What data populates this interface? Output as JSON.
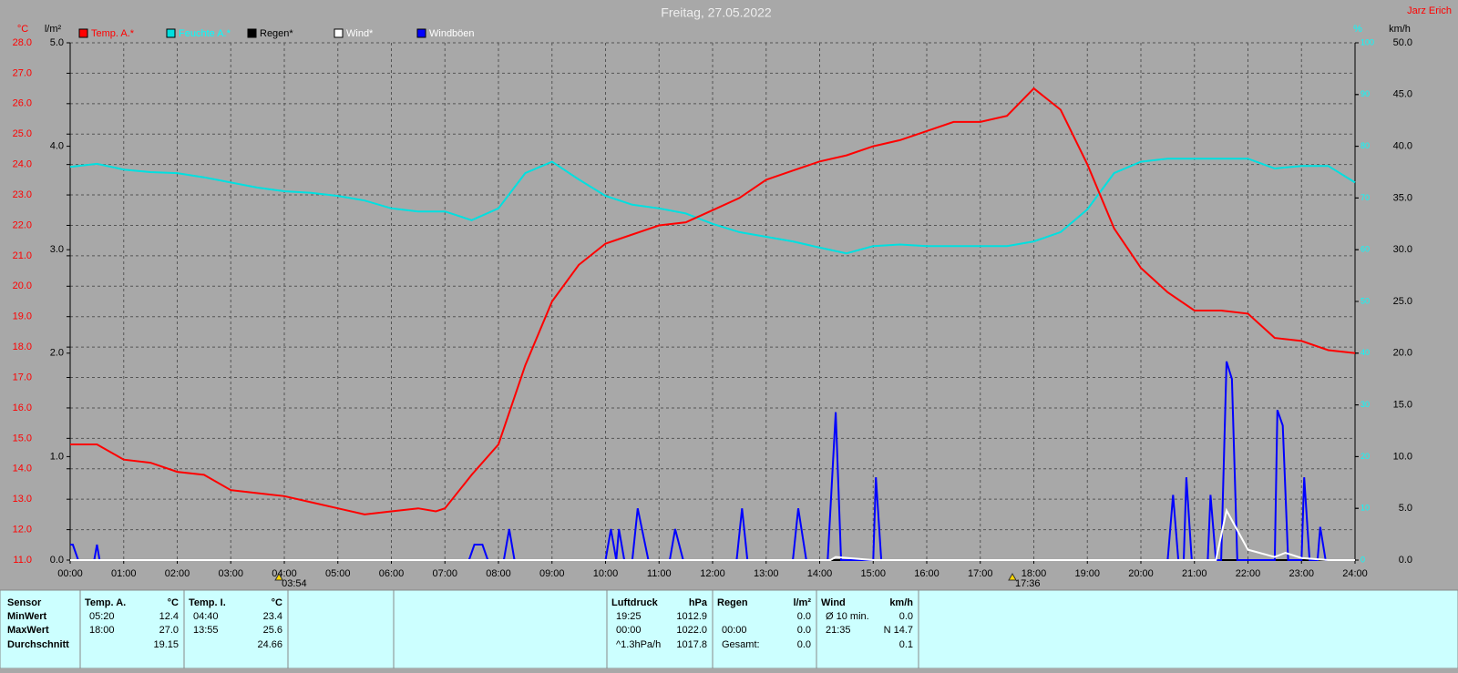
{
  "chart_data": {
    "type": "line",
    "title": "Freitag, 27.05.2022",
    "author": "Jarz Erich",
    "grid": true,
    "xlim": [
      0,
      24
    ],
    "xticks": [
      {
        "value": 0,
        "label": "00:00"
      },
      {
        "value": 1,
        "label": "01:00"
      },
      {
        "value": 2,
        "label": "02:00"
      },
      {
        "value": 3,
        "label": "03:00"
      },
      {
        "value": 4,
        "label": "04:00"
      },
      {
        "value": 5,
        "label": "05:00"
      },
      {
        "value": 6,
        "label": "06:00"
      },
      {
        "value": 7,
        "label": "07:00"
      },
      {
        "value": 8,
        "label": "08:00"
      },
      {
        "value": 9,
        "label": "09:00"
      },
      {
        "value": 10,
        "label": "10:00"
      },
      {
        "value": 11,
        "label": "11:00"
      },
      {
        "value": 12,
        "label": "12:00"
      },
      {
        "value": 13,
        "label": "13:00"
      },
      {
        "value": 14,
        "label": "14:00"
      },
      {
        "value": 15,
        "label": "15:00"
      },
      {
        "value": 16,
        "label": "16:00"
      },
      {
        "value": 17,
        "label": "17:00"
      },
      {
        "value": 18,
        "label": "18:00"
      },
      {
        "value": 19,
        "label": "19:00"
      },
      {
        "value": 20,
        "label": "20:00"
      },
      {
        "value": 21,
        "label": "21:00"
      },
      {
        "value": 22,
        "label": "22:00"
      },
      {
        "value": 23,
        "label": "23:00"
      },
      {
        "value": 24,
        "label": "24:00"
      }
    ],
    "axes": [
      {
        "label": "°C",
        "color": "#ff0000",
        "lim": [
          11,
          28
        ],
        "ticks": [
          {
            "value": 11,
            "label": "11.0"
          },
          {
            "value": 12,
            "label": "12.0"
          },
          {
            "value": 13,
            "label": "13.0"
          },
          {
            "value": 14,
            "label": "14.0"
          },
          {
            "value": 15,
            "label": "15.0"
          },
          {
            "value": 16,
            "label": "16.0"
          },
          {
            "value": 17,
            "label": "17.0"
          },
          {
            "value": 18,
            "label": "18.0"
          },
          {
            "value": 19,
            "label": "19.0"
          },
          {
            "value": 20,
            "label": "20.0"
          },
          {
            "value": 21,
            "label": "21.0"
          },
          {
            "value": 22,
            "label": "22.0"
          },
          {
            "value": 23,
            "label": "23.0"
          },
          {
            "value": 24,
            "label": "24.0"
          },
          {
            "value": 25,
            "label": "25.0"
          },
          {
            "value": 26,
            "label": "26.0"
          },
          {
            "value": 27,
            "label": "27.0"
          },
          {
            "value": 28,
            "label": "28.0"
          }
        ]
      },
      {
        "label": "l/m²",
        "color": "#000000",
        "lim": [
          0,
          5
        ],
        "ticks": [
          {
            "value": 0,
            "label": "0.0"
          },
          {
            "value": 1,
            "label": "1.0"
          },
          {
            "value": 2,
            "label": "2.0"
          },
          {
            "value": 3,
            "label": "3.0"
          },
          {
            "value": 4,
            "label": "4.0"
          },
          {
            "value": 5,
            "label": "5.0"
          }
        ]
      },
      {
        "label": "%",
        "color": "#00ffff",
        "lim": [
          0,
          100
        ],
        "ticks": [
          0,
          10,
          20,
          30,
          40,
          50,
          60,
          70,
          80,
          90,
          100
        ]
      },
      {
        "label": "km/h",
        "color": "#000000",
        "lim": [
          0,
          50
        ],
        "ticks": [
          {
            "value": 0,
            "label": "0.0"
          },
          {
            "value": 5,
            "label": "5.0"
          },
          {
            "value": 10,
            "label": "10.0"
          },
          {
            "value": 15,
            "label": "15.0"
          },
          {
            "value": 20,
            "label": "20.0"
          },
          {
            "value": 25,
            "label": "25.0"
          },
          {
            "value": 30,
            "label": "30.0"
          },
          {
            "value": 35,
            "label": "35.0"
          },
          {
            "value": 40,
            "label": "40.0"
          },
          {
            "value": 45,
            "label": "45.0"
          },
          {
            "value": 50,
            "label": "50.0"
          }
        ]
      }
    ],
    "series": [
      {
        "name": "Temp. A.*",
        "color": "#ff0000",
        "label_color": "#ff0000",
        "axis": 0,
        "x": [
          0,
          0.5,
          1,
          1.5,
          2,
          2.5,
          3,
          3.5,
          4,
          4.5,
          5,
          5.5,
          6,
          6.5,
          6.83,
          7,
          7.5,
          8,
          8.5,
          9,
          9.5,
          10,
          10.5,
          11,
          11.5,
          12,
          12.5,
          13,
          13.5,
          14,
          14.5,
          15,
          15.5,
          16,
          16.5,
          17,
          17.5,
          18,
          18.5,
          19,
          19.5,
          20,
          20.5,
          21,
          21.5,
          22,
          22.5,
          23,
          23.5,
          24
        ],
        "values": [
          14.8,
          14.8,
          14.3,
          14.2,
          13.9,
          13.8,
          13.3,
          13.2,
          13.1,
          12.9,
          12.7,
          12.5,
          12.6,
          12.7,
          12.6,
          12.7,
          13.8,
          14.8,
          17.4,
          19.5,
          20.7,
          21.4,
          21.7,
          22.0,
          22.1,
          22.5,
          22.9,
          23.5,
          23.8,
          24.1,
          24.3,
          24.6,
          24.8,
          25.1,
          25.4,
          25.4,
          25.6,
          26.5,
          25.8,
          24.0,
          21.9,
          20.6,
          19.8,
          19.2,
          19.2,
          19.1,
          18.3,
          18.2,
          17.9,
          17.8
        ]
      },
      {
        "name": "Feuchte A.*",
        "color": "#00e0e0",
        "label_color": "#00ffff",
        "axis": 2,
        "x": [
          0,
          0.5,
          1,
          1.5,
          2,
          2.5,
          3,
          3.5,
          4,
          4.5,
          5,
          5.5,
          6,
          6.5,
          7,
          7.5,
          8,
          8.5,
          9,
          9.5,
          10,
          10.5,
          11,
          11.5,
          12,
          12.5,
          13,
          13.5,
          14,
          14.5,
          15,
          15.5,
          16,
          16.5,
          17,
          17.5,
          18,
          18.5,
          19,
          19.5,
          20,
          20.5,
          21,
          21.5,
          22,
          22.5,
          23,
          23.5,
          24
        ],
        "values": [
          76,
          76.6,
          75.5,
          75,
          74.8,
          74,
          73,
          72,
          71.3,
          71,
          70.4,
          69.5,
          68,
          67.4,
          67.4,
          65.7,
          68,
          74.8,
          77,
          73.6,
          70.4,
          68.7,
          68,
          67,
          65,
          63.4,
          62.5,
          61.6,
          60.4,
          59.3,
          60.7,
          61,
          60.7,
          60.7,
          60.7,
          60.7,
          61.6,
          63.4,
          67.8,
          74.8,
          77,
          77.6,
          77.6,
          77.6,
          77.6,
          75.7,
          76.2,
          76.2,
          73
        ]
      },
      {
        "name": "Regen*",
        "color": "#000000",
        "label_color": "#000000",
        "axis": 1,
        "x": [
          0,
          24
        ],
        "values": [
          0,
          0
        ]
      },
      {
        "name": "Wind*",
        "color": "#ffffff",
        "label_color": "#ffffff",
        "axis": 3,
        "x": [
          0,
          14.2,
          14.3,
          15,
          21.4,
          21.6,
          22,
          22.5,
          22.7,
          23,
          23.5,
          24
        ],
        "values": [
          0,
          0,
          0.3,
          0,
          0,
          4.8,
          1,
          0.3,
          0.7,
          0.2,
          0,
          0
        ]
      },
      {
        "name": "Windböen",
        "color": "#0000ff",
        "label_color": "#ffffff",
        "axis": 3,
        "x": [
          0,
          0.05,
          0.15,
          0.45,
          0.5,
          0.55,
          7.45,
          7.55,
          7.7,
          7.8,
          8.1,
          8.2,
          8.3,
          10,
          10.1,
          10.2,
          10.25,
          10.35,
          10.5,
          10.6,
          10.8,
          11.2,
          11.3,
          11.45,
          12.45,
          12.55,
          12.65,
          13.5,
          13.6,
          13.75,
          14.15,
          14.3,
          14.4,
          15,
          15.05,
          15.15,
          20.5,
          20.6,
          20.7,
          20.8,
          20.85,
          20.95,
          21.25,
          21.3,
          21.4,
          21.5,
          21.6,
          21.7,
          21.8,
          22.5,
          22.55,
          22.65,
          22.75,
          23,
          23.05,
          23.15,
          23.3,
          23.35,
          23.45,
          24
        ],
        "values": [
          1.5,
          1.5,
          0,
          0,
          1.5,
          0,
          0,
          1.5,
          1.5,
          0,
          0,
          3,
          0,
          0,
          3,
          0,
          3,
          0,
          0,
          5,
          0,
          0,
          3,
          0,
          0,
          5,
          0,
          0,
          5,
          0,
          0,
          14.3,
          0,
          0,
          8,
          0,
          0,
          6.3,
          0,
          0,
          8,
          0,
          0,
          6.3,
          0,
          0,
          19.2,
          17.5,
          0,
          0,
          14.5,
          13,
          0,
          0,
          8,
          0,
          0,
          3.2,
          0,
          0
        ]
      }
    ],
    "annotations": [
      {
        "x": 3.9,
        "label": "03:54"
      },
      {
        "x": 17.6,
        "label": "17:36"
      }
    ]
  },
  "stats": {
    "sensor": {
      "header": "Sensor",
      "rows": [
        "MinWert",
        "MaxWert",
        "Durchschnitt"
      ]
    },
    "groups": [
      {
        "name": "Temp. A.",
        "unit": "°C",
        "rows": [
          {
            "time": "05:20",
            "value": "12.4"
          },
          {
            "time": "18:00",
            "value": "27.0"
          },
          {
            "value": "19.15"
          }
        ]
      },
      {
        "name": "Temp. I.",
        "unit": "°C",
        "rows": [
          {
            "time": "04:40",
            "value": "23.4"
          },
          {
            "time": "13:55",
            "value": "25.6"
          },
          {
            "value": "24.66"
          }
        ]
      },
      {
        "name": "Luftdruck",
        "unit": "hPa",
        "rows": [
          {
            "time": "19:25",
            "value": "1012.9"
          },
          {
            "time": "00:00",
            "value": "1022.0"
          },
          {
            "time": "^1.3hPa/h",
            "value": "1017.8"
          }
        ]
      },
      {
        "name": "Regen",
        "unit": "l/m²",
        "rows": [
          {
            "value": "0.0"
          },
          {
            "time": "00:00",
            "value": "0.0"
          },
          {
            "time": "Gesamt:",
            "value": "0.0"
          }
        ]
      },
      {
        "name": "Wind",
        "unit": "km/h",
        "rows": [
          {
            "time": "Ø 10 min.",
            "value": "0.0"
          },
          {
            "time": "21:35",
            "value": "N 14.7"
          },
          {
            "value": "0.1"
          }
        ]
      }
    ]
  }
}
